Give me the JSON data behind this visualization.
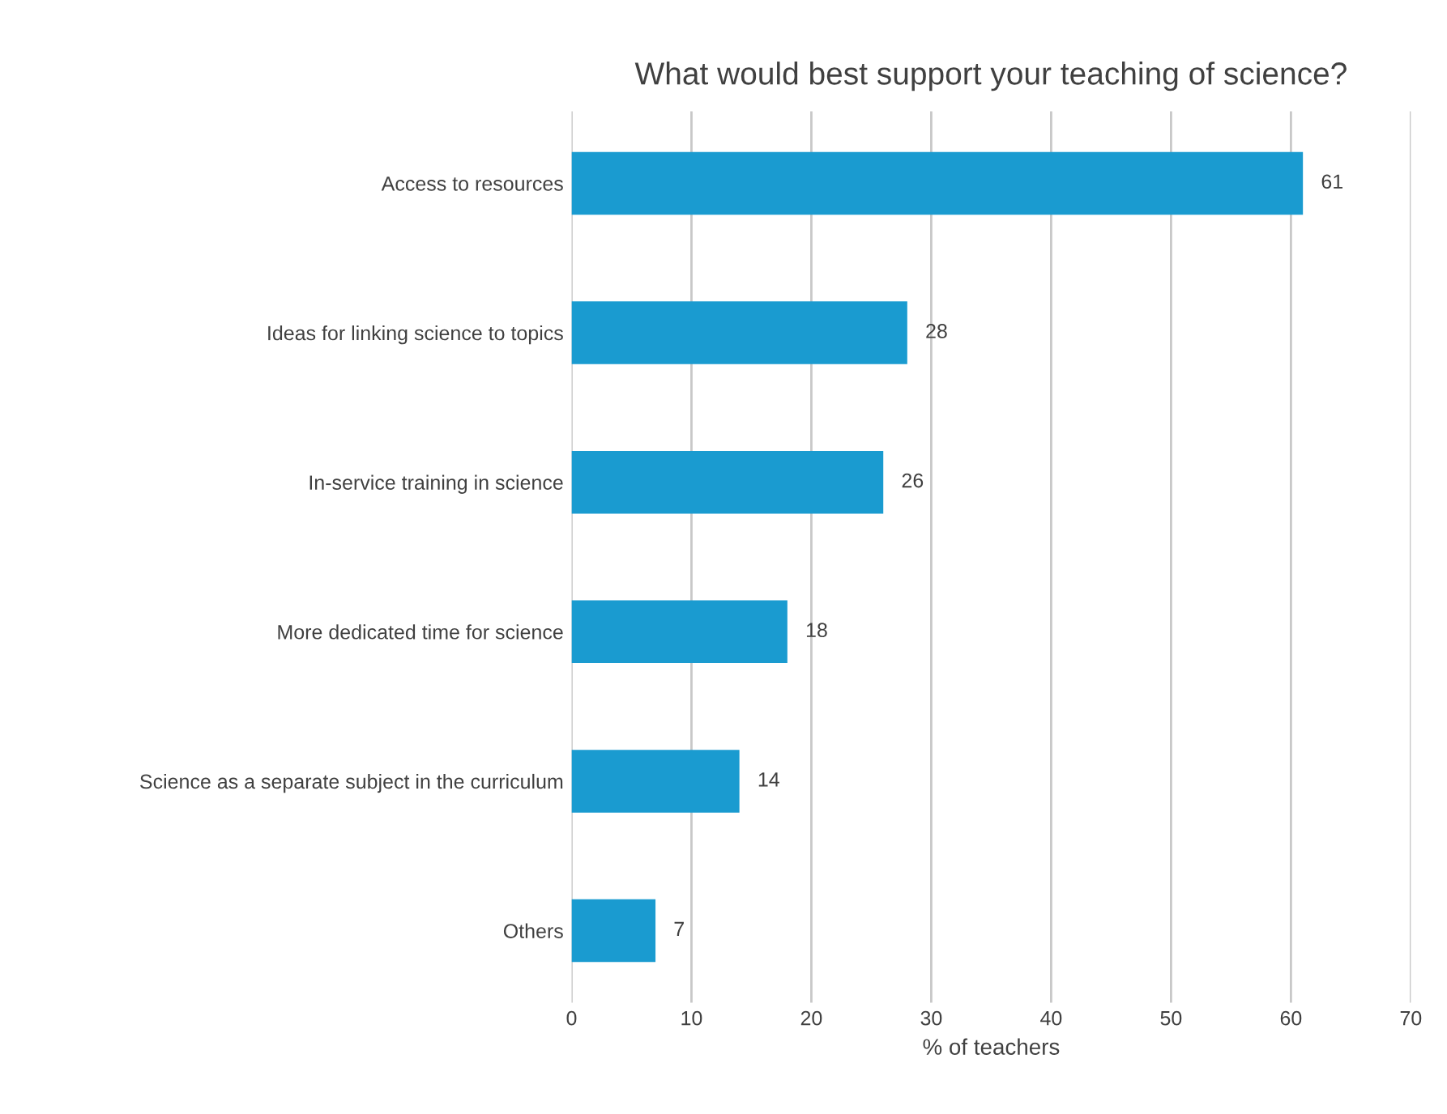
{
  "chart_data": {
    "type": "bar",
    "orientation": "horizontal",
    "title": "What would best support your teaching of science?",
    "categories": [
      "Access to resources",
      "Ideas for linking science to topics",
      "In-service training in science",
      "More dedicated time for science",
      "Science as a separate subject in the curriculum",
      "Others"
    ],
    "values": [
      61,
      28,
      26,
      18,
      14,
      7
    ],
    "color": "#1a9bd0",
    "xlabel": "% of teachers",
    "xlim": [
      0,
      70
    ],
    "xticks": [
      0,
      10,
      20,
      30,
      40,
      50,
      60,
      70
    ],
    "grid": "x",
    "data_labels": true
  }
}
